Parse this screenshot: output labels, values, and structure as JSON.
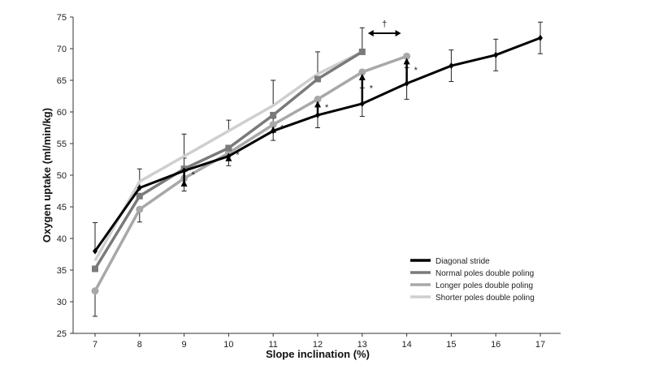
{
  "chart_data": {
    "type": "line",
    "title": "",
    "xlabel": "Slope inclination (%)",
    "ylabel": "Oxygen uptake (ml/min/kg)",
    "x": [
      7,
      8,
      9,
      10,
      11,
      12,
      13,
      14,
      15,
      16,
      17
    ],
    "xlim": [
      7,
      17
    ],
    "ylim": [
      25,
      75
    ],
    "yticks": [
      25,
      30,
      35,
      40,
      45,
      50,
      55,
      60,
      65,
      70,
      75
    ],
    "legend_position": "bottom-right",
    "series": [
      {
        "name": "Diagonal stride",
        "color": "#000000",
        "marker": "diamond",
        "values": [
          38,
          48,
          50.7,
          53,
          57,
          59.5,
          61.3,
          64.5,
          67.3,
          69,
          71.7
        ],
        "error_up": [
          4.5,
          3,
          2,
          1.5,
          2,
          2.5,
          2.5,
          2.5,
          2.5,
          2.5,
          2.5
        ],
        "error_down": [
          null,
          null,
          null,
          1.5,
          1.5,
          2,
          2,
          2.5,
          2.5,
          2.5,
          2.5
        ]
      },
      {
        "name": "Normal poles double poling",
        "color": "#7a7a7a",
        "marker": "square",
        "values": [
          35.2,
          46.7,
          51,
          54.3,
          59.5,
          65.2,
          69.5,
          null,
          null,
          null,
          null
        ]
      },
      {
        "name": "Longer poles double poling",
        "color": "#a8a8a8",
        "marker": "circle",
        "values": [
          31.7,
          44.6,
          49.5,
          53.5,
          58,
          62,
          66.3,
          68.8,
          null,
          null,
          null
        ],
        "error_down": [
          4,
          2,
          2,
          null,
          null,
          null,
          null,
          null,
          null,
          null,
          null
        ]
      },
      {
        "name": "Shorter poles double poling",
        "color": "#cfcfcf",
        "marker": "none",
        "values": [
          36.5,
          49,
          53,
          57,
          61,
          66,
          69.5,
          null,
          null,
          null,
          null
        ],
        "error_up": [
          null,
          null,
          3.5,
          1.7,
          4,
          3.5,
          3.8,
          null,
          null,
          null,
          null
        ]
      }
    ],
    "annotations": {
      "significance_marker": "*",
      "dagger_marker": "†",
      "star_at_x": [
        9,
        10,
        11,
        12,
        13,
        14
      ],
      "dagger_between": [
        13,
        14
      ]
    }
  }
}
